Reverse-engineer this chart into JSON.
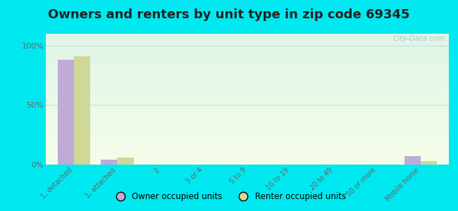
{
  "title": "Owners and renters by unit type in zip code 69345",
  "categories": [
    "1, detached",
    "1, attached",
    "2",
    "3 or 4",
    "5 to 9",
    "10 to 19",
    "20 to 49",
    "50 or more",
    "Mobile home"
  ],
  "owner_values": [
    88,
    4,
    0,
    0,
    0,
    0,
    0,
    0,
    7
  ],
  "renter_values": [
    91,
    6,
    0,
    0,
    0,
    0,
    0,
    0,
    3
  ],
  "owner_color": "#c0aad8",
  "renter_color": "#d0d898",
  "outer_bg": "#00e8f0",
  "yticks": [
    0,
    50,
    100
  ],
  "ylim": [
    0,
    110
  ],
  "watermark": "City-Data.com",
  "legend_owner": "Owner occupied units",
  "legend_renter": "Renter occupied units",
  "title_fontsize": 13,
  "bar_width": 0.38,
  "grid_color": "#ccddcc",
  "tick_color": "#666666",
  "title_color": "#222222"
}
